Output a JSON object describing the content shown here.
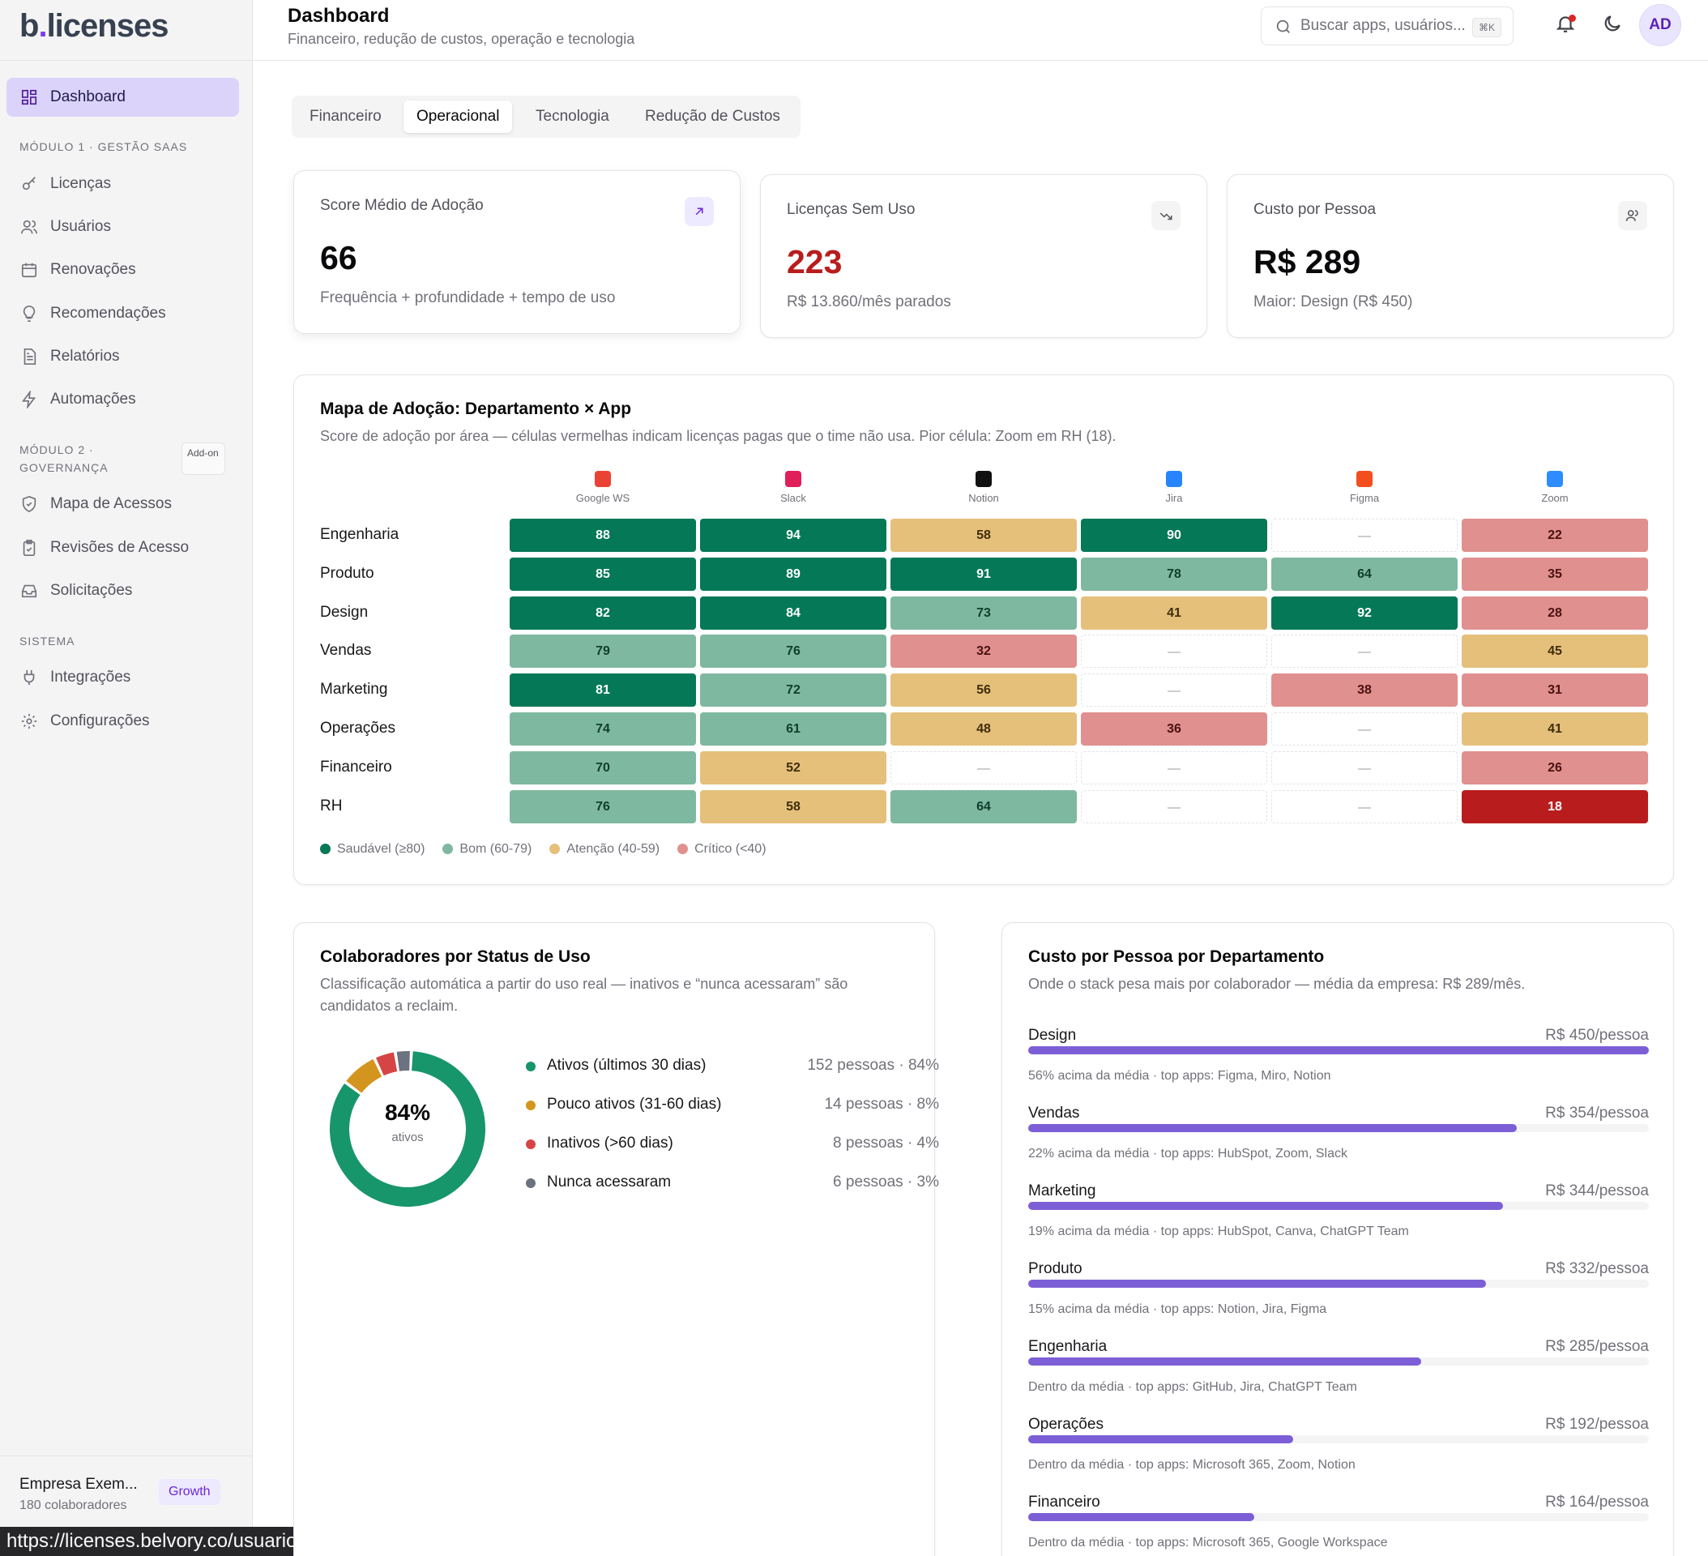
{
  "sidebar": {
    "logo_b": "b",
    "logo_dot": ".",
    "logo_rest": "licenses",
    "dashboard": "Dashboard",
    "section1": "MÓDULO 1 · GESTÃO SAAS",
    "licencas": "Licenças",
    "usuarios": "Usuários",
    "renovacoes": "Renovações",
    "recomendacoes": "Recomendações",
    "relatorios": "Relatórios",
    "automacoes": "Automações",
    "section2": "MÓDULO 2 · GOVERNANÇA",
    "addon": "Add-on",
    "mapa": "Mapa de Acessos",
    "revisoes": "Revisões de Acesso",
    "solicitacoes": "Solicitações",
    "section3": "SISTEMA",
    "integracoes": "Integrações",
    "configuracoes": "Configurações",
    "org_name": "Empresa Exem...",
    "org_sub": "180 colaboradores",
    "plan": "Growth"
  },
  "status_url": "https://licenses.belvory.co/usuarios",
  "header": {
    "title": "Dashboard",
    "subtitle": "Financeiro, redução de custos, operação e tecnologia",
    "search_placeholder": "Buscar apps, usuários...",
    "kbd": "⌘K",
    "avatar": "AD"
  },
  "tabs": [
    "Financeiro",
    "Operacional",
    "Tecnologia",
    "Redução de Custos"
  ],
  "kpis": [
    {
      "label": "Score Médio de Adoção",
      "value": "66",
      "sub": "Frequência + profundidade + tempo de uso"
    },
    {
      "label": "Licenças Sem Uso",
      "value": "223",
      "sub": "R$ 13.860/mês parados"
    },
    {
      "label": "Custo por Pessoa",
      "value": "R$ 289",
      "sub": "Maior: Design (R$ 450)"
    }
  ],
  "heatmap": {
    "title": "Mapa de Adoção: Departamento × App",
    "subtitle": "Score de adoção por área — células vermelhas indicam licenças pagas que o time não usa. Pior célula: Zoom em RH (18).",
    "apps": [
      "Google WS",
      "Slack",
      "Notion",
      "Jira",
      "Figma",
      "Zoom"
    ],
    "departments": [
      "Engenharia",
      "Produto",
      "Design",
      "Vendas",
      "Marketing",
      "Operações",
      "Financeiro",
      "RH"
    ],
    "values": [
      [
        88,
        94,
        58,
        90,
        null,
        22
      ],
      [
        85,
        89,
        91,
        78,
        64,
        35
      ],
      [
        82,
        84,
        73,
        41,
        92,
        28
      ],
      [
        79,
        76,
        32,
        null,
        null,
        45
      ],
      [
        81,
        72,
        56,
        null,
        38,
        31
      ],
      [
        74,
        61,
        48,
        36,
        null,
        41
      ],
      [
        70,
        52,
        null,
        null,
        null,
        26
      ],
      [
        76,
        58,
        64,
        null,
        null,
        18
      ]
    ],
    "empty_text": "—",
    "legend": [
      "Saudável (≥80)",
      "Bom (60-79)",
      "Atenção (40-59)",
      "Crítico (<40)"
    ]
  },
  "status_card": {
    "title": "Colaboradores por Status de Uso",
    "subtitle": "Classificação automática a partir do uso real — inativos e “nunca acessaram” são candidatos a reclaim.",
    "center_pct": "84%",
    "center_label": "ativos",
    "items": [
      {
        "label": "Ativos (últimos 30 dias)",
        "value": "152 pessoas · 84%",
        "count": 152,
        "color": "#17956b"
      },
      {
        "label": "Pouco ativos (31-60 dias)",
        "value": "14 pessoas · 8%",
        "count": 14,
        "color": "#d4951e"
      },
      {
        "label": "Inativos (>60 dias)",
        "value": "8 pessoas · 4%",
        "count": 8,
        "color": "#d64545"
      },
      {
        "label": "Nunca acessaram",
        "value": "6 pessoas · 3%",
        "count": 6,
        "color": "#6b7280"
      }
    ]
  },
  "cost_card": {
    "title": "Custo por Pessoa por Departamento",
    "subtitle": "Onde o stack pesa mais por colaborador — média da empresa: R$ 289/mês.",
    "max": 450,
    "items": [
      {
        "name": "Design",
        "cost": "R$ 450/pessoa",
        "value": 450,
        "note": "56% acima da média · top apps: Figma, Miro, Notion"
      },
      {
        "name": "Vendas",
        "cost": "R$ 354/pessoa",
        "value": 354,
        "note": "22% acima da média · top apps: HubSpot, Zoom, Slack"
      },
      {
        "name": "Marketing",
        "cost": "R$ 344/pessoa",
        "value": 344,
        "note": "19% acima da média · top apps: HubSpot, Canva, ChatGPT Team"
      },
      {
        "name": "Produto",
        "cost": "R$ 332/pessoa",
        "value": 332,
        "note": "15% acima da média · top apps: Notion, Jira, Figma"
      },
      {
        "name": "Engenharia",
        "cost": "R$ 285/pessoa",
        "value": 285,
        "note": "Dentro da média · top apps: GitHub, Jira, ChatGPT Team"
      },
      {
        "name": "Operações",
        "cost": "R$ 192/pessoa",
        "value": 192,
        "note": "Dentro da média · top apps: Microsoft 365, Zoom, Notion"
      },
      {
        "name": "Financeiro",
        "cost": "R$ 164/pessoa",
        "value": 164,
        "note": "Dentro da média · top apps: Microsoft 365, Google Workspace"
      }
    ]
  },
  "colors": {
    "accent": "#7c3aed",
    "healthy": "#047857",
    "good": "#7fb8a0",
    "attention": "#e5c07b",
    "critical": "#e0908e",
    "worst": "#b91c1c"
  }
}
